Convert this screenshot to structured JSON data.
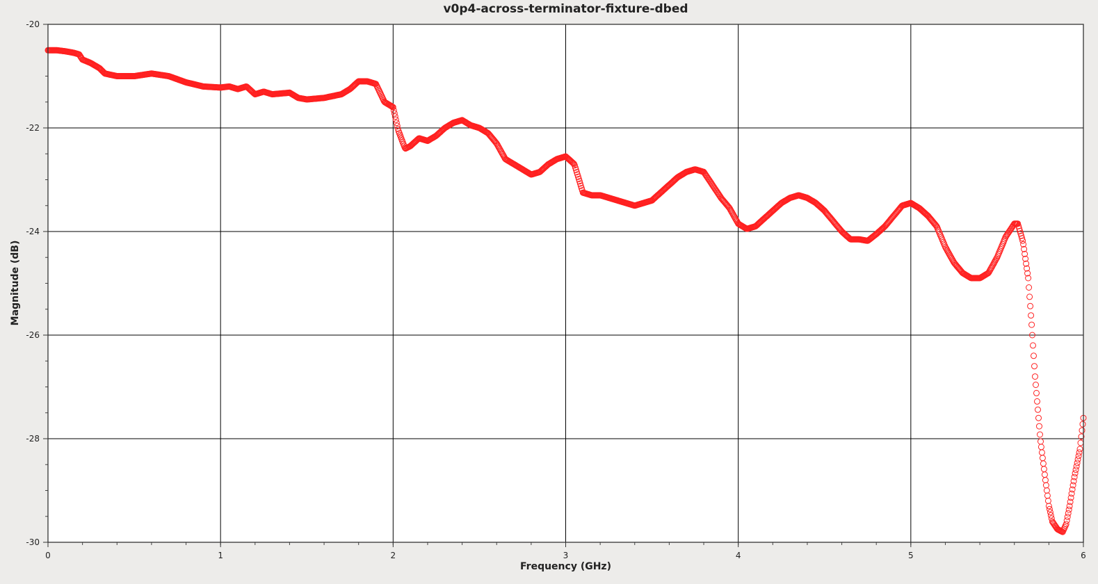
{
  "chart_data": {
    "type": "scatter",
    "title": "v0p4-across-terminator-fixture-dbed",
    "xlabel": "Frequency (GHz)",
    "ylabel": "Magnitude (dB)",
    "xlim": [
      0,
      6
    ],
    "ylim": [
      -30,
      -20
    ],
    "x_ticks": [
      0,
      1,
      2,
      3,
      4,
      5,
      6
    ],
    "y_ticks": [
      -30,
      -28,
      -26,
      -24,
      -22,
      -20
    ],
    "x_tick_labels": [
      "0",
      "1",
      "2",
      "3",
      "4",
      "5",
      "6"
    ],
    "y_tick_labels": [
      "-30",
      "-28",
      "-26",
      "-24",
      "-22",
      "-20"
    ],
    "grid": true,
    "marker": "open-circle",
    "color": "#ff2020",
    "series": [
      {
        "x": [
          0.0,
          0.05,
          0.1,
          0.15,
          0.18,
          0.2,
          0.25,
          0.3,
          0.33,
          0.4,
          0.5,
          0.6,
          0.7,
          0.8,
          0.9,
          1.0,
          1.05,
          1.1,
          1.15,
          1.2,
          1.25,
          1.3,
          1.4,
          1.45,
          1.5,
          1.6,
          1.7,
          1.75,
          1.8,
          1.85,
          1.9,
          1.95,
          2.0,
          2.03,
          2.07,
          2.1,
          2.15,
          2.2,
          2.25,
          2.3,
          2.35,
          2.4,
          2.45,
          2.5,
          2.55,
          2.6,
          2.65,
          2.7,
          2.75,
          2.8,
          2.85,
          2.9,
          2.95,
          3.0,
          3.05,
          3.1,
          3.15,
          3.2,
          3.25,
          3.3,
          3.4,
          3.5,
          3.6,
          3.65,
          3.7,
          3.75,
          3.8,
          3.85,
          3.9,
          3.95,
          4.0,
          4.05,
          4.1,
          4.15,
          4.2,
          4.25,
          4.3,
          4.35,
          4.4,
          4.45,
          4.5,
          4.55,
          4.6,
          4.65,
          4.7,
          4.75,
          4.8,
          4.85,
          4.9,
          4.95,
          5.0,
          5.05,
          5.1,
          5.15,
          5.2,
          5.25,
          5.3,
          5.35,
          5.4,
          5.45,
          5.5,
          5.55,
          5.6,
          5.62,
          5.65,
          5.68,
          5.7,
          5.72,
          5.75,
          5.78,
          5.8,
          5.82,
          5.85,
          5.88,
          5.9,
          5.92,
          5.95,
          5.98,
          6.0
        ],
        "y": [
          -20.5,
          -20.5,
          -20.52,
          -20.55,
          -20.58,
          -20.68,
          -20.75,
          -20.85,
          -20.95,
          -21.0,
          -21.0,
          -20.95,
          -21.0,
          -21.12,
          -21.2,
          -21.22,
          -21.2,
          -21.25,
          -21.2,
          -21.35,
          -21.3,
          -21.35,
          -21.32,
          -21.42,
          -21.45,
          -21.42,
          -21.35,
          -21.25,
          -21.1,
          -21.1,
          -21.15,
          -21.5,
          -21.6,
          -22.05,
          -22.4,
          -22.35,
          -22.2,
          -22.25,
          -22.15,
          -22.0,
          -21.9,
          -21.85,
          -21.95,
          -22.0,
          -22.1,
          -22.3,
          -22.6,
          -22.7,
          -22.8,
          -22.9,
          -22.85,
          -22.7,
          -22.6,
          -22.55,
          -22.7,
          -23.25,
          -23.3,
          -23.3,
          -23.35,
          -23.4,
          -23.5,
          -23.4,
          -23.1,
          -22.95,
          -22.85,
          -22.8,
          -22.85,
          -23.1,
          -23.35,
          -23.55,
          -23.85,
          -23.95,
          -23.9,
          -23.75,
          -23.6,
          -23.45,
          -23.35,
          -23.3,
          -23.35,
          -23.45,
          -23.6,
          -23.8,
          -24.0,
          -24.15,
          -24.15,
          -24.18,
          -24.05,
          -23.9,
          -23.7,
          -23.5,
          -23.45,
          -23.55,
          -23.7,
          -23.9,
          -24.3,
          -24.6,
          -24.8,
          -24.9,
          -24.9,
          -24.8,
          -24.5,
          -24.1,
          -23.85,
          -23.85,
          -24.2,
          -24.9,
          -25.8,
          -26.8,
          -28.0,
          -28.8,
          -29.3,
          -29.6,
          -29.75,
          -29.8,
          -29.65,
          -29.3,
          -28.7,
          -28.2,
          -27.6
        ]
      }
    ]
  }
}
